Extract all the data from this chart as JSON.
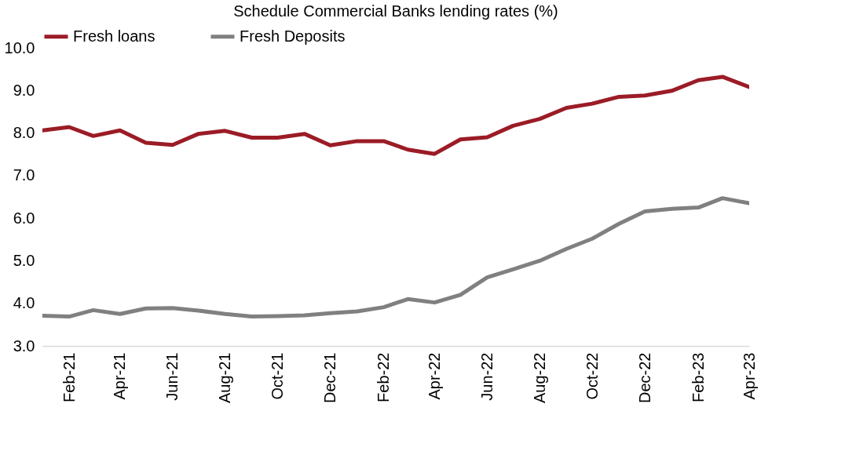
{
  "chart_data": {
    "type": "line",
    "title": "Schedule Commercial Banks lending rates (%)",
    "x": [
      "2021-01",
      "2021-02",
      "2021-03",
      "2021-04",
      "2021-05",
      "2021-06",
      "2021-07",
      "2021-08",
      "2021-09",
      "2021-10",
      "2021-11",
      "2021-12",
      "2022-01",
      "2022-02",
      "2022-03",
      "2022-04",
      "2022-05",
      "2022-06",
      "2022-07",
      "2022-08",
      "2022-09",
      "2022-10",
      "2022-11",
      "2022-12",
      "2023-01",
      "2023-02",
      "2023-03",
      "2023-04"
    ],
    "series": [
      {
        "name": "Fresh loans",
        "color": "#9b1c26",
        "values": [
          8.06,
          8.14,
          7.93,
          8.06,
          7.77,
          7.72,
          7.98,
          8.05,
          7.89,
          7.89,
          7.98,
          7.71,
          7.81,
          7.81,
          7.61,
          7.51,
          7.85,
          7.9,
          8.17,
          8.33,
          8.59,
          8.69,
          8.85,
          8.88,
          8.99,
          9.24,
          9.32,
          9.08
        ]
      },
      {
        "name": "Fresh Deposits",
        "color": "#808080",
        "values": [
          3.71,
          3.69,
          3.84,
          3.75,
          3.88,
          3.89,
          3.83,
          3.75,
          3.69,
          3.7,
          3.72,
          3.77,
          3.81,
          3.91,
          4.1,
          4.02,
          4.2,
          4.61,
          4.8,
          5.0,
          5.28,
          5.52,
          5.87,
          6.16,
          6.22,
          6.25,
          6.47,
          6.35
        ]
      }
    ],
    "xlim": [
      "2021-01-01",
      "2023-04-01"
    ],
    "xticks": [
      {
        "value": "2021-02",
        "label": "Feb-21"
      },
      {
        "value": "2021-04",
        "label": "Apr-21"
      },
      {
        "value": "2021-06",
        "label": "Jun-21"
      },
      {
        "value": "2021-08",
        "label": "Aug-21"
      },
      {
        "value": "2021-10",
        "label": "Oct-21"
      },
      {
        "value": "2021-12",
        "label": "Dec-21"
      },
      {
        "value": "2022-02",
        "label": "Feb-22"
      },
      {
        "value": "2022-04",
        "label": "Apr-22"
      },
      {
        "value": "2022-06",
        "label": "Jun-22"
      },
      {
        "value": "2022-08",
        "label": "Aug-22"
      },
      {
        "value": "2022-10",
        "label": "Oct-22"
      },
      {
        "value": "2022-12",
        "label": "Dec-22"
      },
      {
        "value": "2023-02",
        "label": "Feb-23"
      },
      {
        "value": "2023-04",
        "label": "Apr-23"
      }
    ],
    "ylim": [
      3.0,
      10.0
    ],
    "yticks": [
      {
        "value": 3,
        "label": "3.0"
      },
      {
        "value": 4,
        "label": "4.0"
      },
      {
        "value": 5,
        "label": "5.0"
      },
      {
        "value": 6,
        "label": "6.0"
      },
      {
        "value": 7,
        "label": "7.0"
      },
      {
        "value": 8,
        "label": "8.0"
      },
      {
        "value": 9,
        "label": "9.0"
      },
      {
        "value": 10,
        "label": "10.0"
      }
    ],
    "grid": false,
    "legend": "top",
    "marker": "none",
    "line_style": "solid"
  }
}
